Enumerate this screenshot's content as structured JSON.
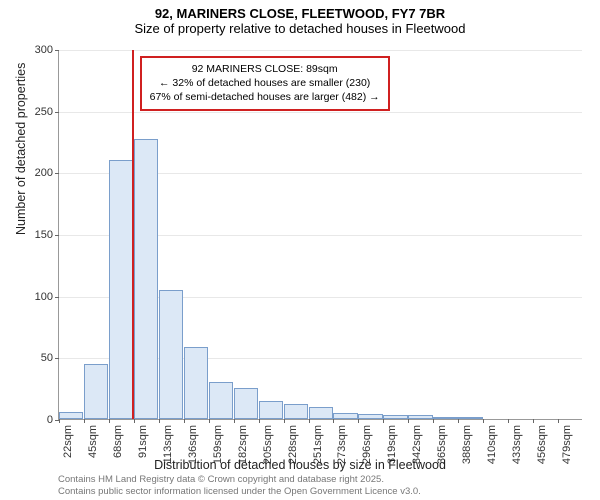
{
  "title_main": "92, MARINERS CLOSE, FLEETWOOD, FY7 7BR",
  "title_sub": "Size of property relative to detached houses in Fleetwood",
  "y_axis_label": "Number of detached properties",
  "x_axis_label": "Distribution of detached houses by size in Fleetwood",
  "footer_line1": "Contains HM Land Registry data © Crown copyright and database right 2025.",
  "footer_line2": "Contains public sector information licensed under the Open Government Licence v3.0.",
  "annotation": {
    "line1": "92 MARINERS CLOSE: 89sqm",
    "line2": "← 32% of detached houses are smaller (230)",
    "line3": "67% of semi-detached houses are larger (482) →"
  },
  "chart": {
    "type": "histogram",
    "ylim": [
      0,
      300
    ],
    "ytick_step": 50,
    "background": "#ffffff",
    "grid_color": "#e8e8e8",
    "axis_color": "#999999",
    "bar_fill": "#dce8f6",
    "bar_border": "#7a9ecb",
    "marker_color": "#d02020",
    "marker_value": 89,
    "x_start": 22,
    "x_step": 23,
    "label_fontsize": 11,
    "axis_label_fontsize": 12.5,
    "title_fontsize": 13,
    "bars": [
      {
        "label": "22sqm",
        "value": 6
      },
      {
        "label": "45sqm",
        "value": 45
      },
      {
        "label": "68sqm",
        "value": 210
      },
      {
        "label": "91sqm",
        "value": 227
      },
      {
        "label": "113sqm",
        "value": 105
      },
      {
        "label": "136sqm",
        "value": 58
      },
      {
        "label": "159sqm",
        "value": 30
      },
      {
        "label": "182sqm",
        "value": 25
      },
      {
        "label": "205sqm",
        "value": 15
      },
      {
        "label": "228sqm",
        "value": 12
      },
      {
        "label": "251sqm",
        "value": 10
      },
      {
        "label": "273sqm",
        "value": 5
      },
      {
        "label": "296sqm",
        "value": 4
      },
      {
        "label": "319sqm",
        "value": 3
      },
      {
        "label": "342sqm",
        "value": 3
      },
      {
        "label": "365sqm",
        "value": 1
      },
      {
        "label": "388sqm",
        "value": 1
      },
      {
        "label": "410sqm",
        "value": 0
      },
      {
        "label": "433sqm",
        "value": 0
      },
      {
        "label": "456sqm",
        "value": 0
      },
      {
        "label": "479sqm",
        "value": 0
      }
    ]
  }
}
